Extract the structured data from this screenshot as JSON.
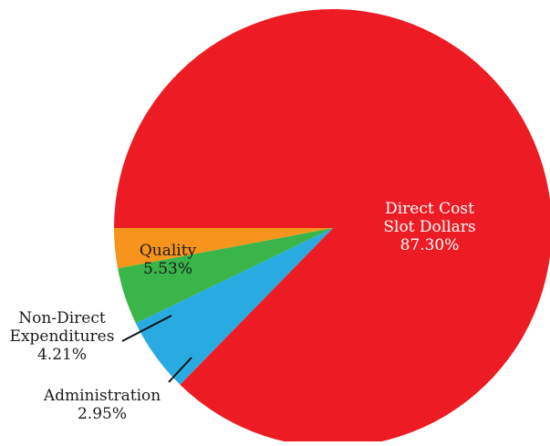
{
  "chart_data": {
    "type": "pie",
    "title": "",
    "slices": [
      {
        "label_lines": [
          "Direct Cost",
          "Slot Dollars"
        ],
        "percent_text": "87.30%",
        "value": 87.3,
        "color": "#ED1C24",
        "label_color": "#ffffff"
      },
      {
        "label_lines": [
          "Quality"
        ],
        "percent_text": "5.53%",
        "value": 5.53,
        "color": "#29ABE2",
        "label_color": "#1a1a1a"
      },
      {
        "label_lines": [
          "Non-Direct",
          "Expenditures"
        ],
        "percent_text": "4.21%",
        "value": 4.21,
        "color": "#39B54A",
        "label_color": "#1a1a1a"
      },
      {
        "label_lines": [
          "Administration"
        ],
        "percent_text": "2.95%",
        "value": 2.95,
        "color": "#F7941D",
        "label_color": "#1a1a1a"
      }
    ],
    "start_direction": "left",
    "rotation": "clockwise",
    "legend": "none",
    "grid": false
  }
}
